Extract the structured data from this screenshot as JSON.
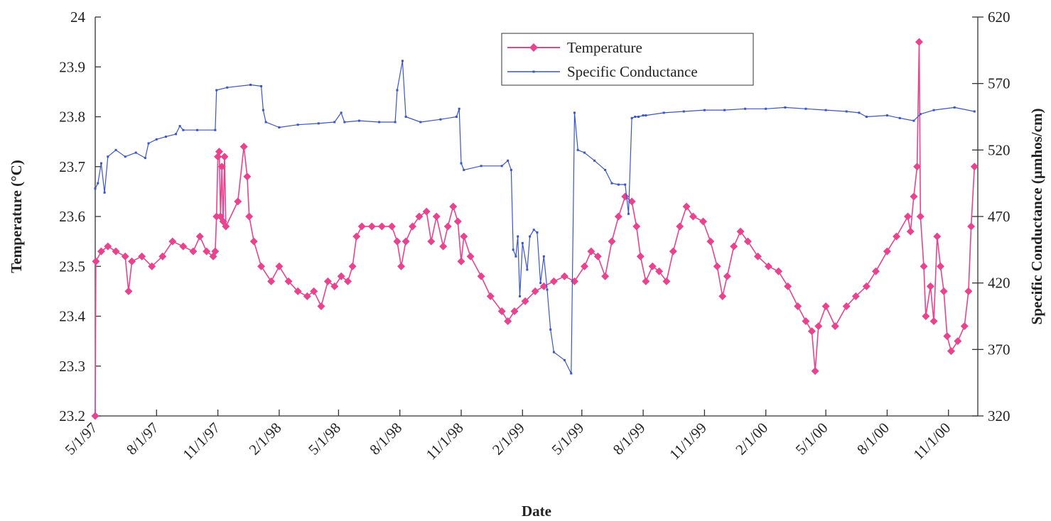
{
  "chart_data": {
    "type": "line",
    "xlabel": "Date",
    "ylabel_left": "Temperature (°C)",
    "ylabel_right": "Specific Conductance (µmhos/cm)",
    "x_tick_labels": [
      "5/1/97",
      "8/1/97",
      "11/1/97",
      "2/1/98",
      "5/1/98",
      "8/1/98",
      "11/1/98",
      "2/1/99",
      "5/1/99",
      "8/1/99",
      "11/1/99",
      "2/1/00",
      "5/1/00",
      "8/1/00",
      "11/1/00"
    ],
    "xlim": [
      "1997-05-01",
      "2000-12-15"
    ],
    "y_left_ticks": [
      "23.2",
      "23.3",
      "23.4",
      "23.5",
      "23.6",
      "23.7",
      "23.8",
      "23.9",
      "24"
    ],
    "ylim_left": [
      23.2,
      24.0
    ],
    "y_right_ticks": [
      "320",
      "370",
      "420",
      "470",
      "520",
      "570",
      "620"
    ],
    "ylim_right": [
      320,
      620
    ],
    "legend_position": "top-center",
    "grid": false,
    "series": [
      {
        "name": "Temperature",
        "axis": "left",
        "color": "#e8438f",
        "marker": "diamond",
        "points": [
          [
            "1997-05-01",
            23.2
          ],
          [
            "1997-05-02",
            23.51
          ],
          [
            "1997-05-10",
            23.53
          ],
          [
            "1997-05-20",
            23.54
          ],
          [
            "1997-06-01",
            23.53
          ],
          [
            "1997-06-15",
            23.52
          ],
          [
            "1997-06-20",
            23.45
          ],
          [
            "1997-06-25",
            23.51
          ],
          [
            "1997-07-10",
            23.52
          ],
          [
            "1997-07-25",
            23.5
          ],
          [
            "1997-08-10",
            23.52
          ],
          [
            "1997-08-25",
            23.55
          ],
          [
            "1997-09-10",
            23.54
          ],
          [
            "1997-09-25",
            23.53
          ],
          [
            "1997-10-05",
            23.56
          ],
          [
            "1997-10-15",
            23.53
          ],
          [
            "1997-10-25",
            23.52
          ],
          [
            "1997-10-28",
            23.53
          ],
          [
            "1997-10-30",
            23.6
          ],
          [
            "1997-11-01",
            23.72
          ],
          [
            "1997-11-03",
            23.73
          ],
          [
            "1997-11-05",
            23.6
          ],
          [
            "1997-11-07",
            23.7
          ],
          [
            "1997-11-09",
            23.59
          ],
          [
            "1997-11-11",
            23.72
          ],
          [
            "1997-11-13",
            23.58
          ],
          [
            "1997-12-01",
            23.63
          ],
          [
            "1997-12-10",
            23.74
          ],
          [
            "1997-12-15",
            23.68
          ],
          [
            "1997-12-18",
            23.6
          ],
          [
            "1997-12-25",
            23.55
          ],
          [
            "1998-01-05",
            23.5
          ],
          [
            "1998-01-20",
            23.47
          ],
          [
            "1998-02-01",
            23.5
          ],
          [
            "1998-02-15",
            23.47
          ],
          [
            "1998-03-01",
            23.45
          ],
          [
            "1998-03-15",
            23.44
          ],
          [
            "1998-03-25",
            23.45
          ],
          [
            "1998-04-05",
            23.42
          ],
          [
            "1998-04-15",
            23.47
          ],
          [
            "1998-04-25",
            23.46
          ],
          [
            "1998-05-05",
            23.48
          ],
          [
            "1998-05-15",
            23.47
          ],
          [
            "1998-05-22",
            23.5
          ],
          [
            "1998-05-28",
            23.56
          ],
          [
            "1998-06-05",
            23.58
          ],
          [
            "1998-06-20",
            23.58
          ],
          [
            "1998-07-05",
            23.58
          ],
          [
            "1998-07-20",
            23.58
          ],
          [
            "1998-07-28",
            23.55
          ],
          [
            "1998-08-03",
            23.5
          ],
          [
            "1998-08-10",
            23.55
          ],
          [
            "1998-08-20",
            23.58
          ],
          [
            "1998-08-30",
            23.6
          ],
          [
            "1998-09-10",
            23.61
          ],
          [
            "1998-09-17",
            23.55
          ],
          [
            "1998-09-25",
            23.6
          ],
          [
            "1998-10-05",
            23.54
          ],
          [
            "1998-10-12",
            23.58
          ],
          [
            "1998-10-20",
            23.62
          ],
          [
            "1998-10-27",
            23.59
          ],
          [
            "1998-11-01",
            23.51
          ],
          [
            "1998-11-05",
            23.56
          ],
          [
            "1998-11-15",
            23.52
          ],
          [
            "1998-12-01",
            23.48
          ],
          [
            "1998-12-15",
            23.44
          ],
          [
            "1999-01-01",
            23.41
          ],
          [
            "1999-01-10",
            23.39
          ],
          [
            "1999-01-20",
            23.41
          ],
          [
            "1999-02-05",
            23.43
          ],
          [
            "1999-02-20",
            23.45
          ],
          [
            "1999-03-05",
            23.46
          ],
          [
            "1999-03-20",
            23.47
          ],
          [
            "1999-04-05",
            23.48
          ],
          [
            "1999-04-20",
            23.47
          ],
          [
            "1999-05-05",
            23.5
          ],
          [
            "1999-05-15",
            23.53
          ],
          [
            "1999-05-25",
            23.52
          ],
          [
            "1999-06-05",
            23.48
          ],
          [
            "1999-06-15",
            23.55
          ],
          [
            "1999-06-25",
            23.6
          ],
          [
            "1999-07-05",
            23.64
          ],
          [
            "1999-07-15",
            23.63
          ],
          [
            "1999-07-22",
            23.58
          ],
          [
            "1999-07-28",
            23.52
          ],
          [
            "1999-08-05",
            23.47
          ],
          [
            "1999-08-15",
            23.5
          ],
          [
            "1999-08-25",
            23.49
          ],
          [
            "1999-09-05",
            23.47
          ],
          [
            "1999-09-15",
            23.53
          ],
          [
            "1999-09-25",
            23.58
          ],
          [
            "1999-10-05",
            23.62
          ],
          [
            "1999-10-15",
            23.6
          ],
          [
            "1999-10-30",
            23.59
          ],
          [
            "1999-11-10",
            23.55
          ],
          [
            "1999-11-20",
            23.5
          ],
          [
            "1999-11-28",
            23.44
          ],
          [
            "1999-12-05",
            23.48
          ],
          [
            "1999-12-15",
            23.54
          ],
          [
            "1999-12-25",
            23.57
          ],
          [
            "2000-01-05",
            23.55
          ],
          [
            "2000-01-20",
            23.52
          ],
          [
            "2000-02-05",
            23.5
          ],
          [
            "2000-02-20",
            23.49
          ],
          [
            "2000-03-05",
            23.46
          ],
          [
            "2000-03-20",
            23.42
          ],
          [
            "2000-04-01",
            23.39
          ],
          [
            "2000-04-10",
            23.37
          ],
          [
            "2000-04-15",
            23.29
          ],
          [
            "2000-04-20",
            23.38
          ],
          [
            "2000-05-01",
            23.42
          ],
          [
            "2000-05-15",
            23.38
          ],
          [
            "2000-06-01",
            23.42
          ],
          [
            "2000-06-15",
            23.44
          ],
          [
            "2000-07-01",
            23.46
          ],
          [
            "2000-07-15",
            23.49
          ],
          [
            "2000-08-01",
            23.53
          ],
          [
            "2000-08-15",
            23.56
          ],
          [
            "2000-09-01",
            23.6
          ],
          [
            "2000-09-05",
            23.57
          ],
          [
            "2000-09-10",
            23.64
          ],
          [
            "2000-09-15",
            23.7
          ],
          [
            "2000-09-18",
            23.95
          ],
          [
            "2000-09-20",
            23.6
          ],
          [
            "2000-09-25",
            23.5
          ],
          [
            "2000-09-28",
            23.4
          ],
          [
            "2000-10-05",
            23.46
          ],
          [
            "2000-10-10",
            23.39
          ],
          [
            "2000-10-15",
            23.56
          ],
          [
            "2000-10-20",
            23.5
          ],
          [
            "2000-10-25",
            23.45
          ],
          [
            "2000-10-30",
            23.36
          ],
          [
            "2000-11-05",
            23.33
          ],
          [
            "2000-11-15",
            23.35
          ],
          [
            "2000-11-25",
            23.38
          ],
          [
            "2000-12-01",
            23.45
          ],
          [
            "2000-12-05",
            23.58
          ],
          [
            "2000-12-10",
            23.7
          ]
        ]
      },
      {
        "name": "Specific Conductance",
        "axis": "right",
        "color": "#3a55c8",
        "marker": "point",
        "points": [
          [
            "1997-05-01",
            491
          ],
          [
            "1997-05-05",
            495
          ],
          [
            "1997-05-10",
            510
          ],
          [
            "1997-05-15",
            488
          ],
          [
            "1997-05-20",
            515
          ],
          [
            "1997-06-01",
            520
          ],
          [
            "1997-06-15",
            515
          ],
          [
            "1997-07-01",
            518
          ],
          [
            "1997-07-15",
            514
          ],
          [
            "1997-07-20",
            525
          ],
          [
            "1997-08-01",
            528
          ],
          [
            "1997-08-15",
            530
          ],
          [
            "1997-08-30",
            532
          ],
          [
            "1997-09-05",
            538
          ],
          [
            "1997-09-10",
            535
          ],
          [
            "1997-10-01",
            535
          ],
          [
            "1997-10-28",
            535
          ],
          [
            "1997-10-30",
            565
          ],
          [
            "1997-11-15",
            567
          ],
          [
            "1997-12-20",
            569
          ],
          [
            "1998-01-05",
            568
          ],
          [
            "1998-01-08",
            550
          ],
          [
            "1998-01-12",
            541
          ],
          [
            "1998-02-01",
            537
          ],
          [
            "1998-03-01",
            539
          ],
          [
            "1998-04-01",
            540
          ],
          [
            "1998-04-25",
            541
          ],
          [
            "1998-05-05",
            548
          ],
          [
            "1998-05-10",
            541
          ],
          [
            "1998-06-01",
            542
          ],
          [
            "1998-07-01",
            541
          ],
          [
            "1998-07-25",
            541
          ],
          [
            "1998-07-28",
            565
          ],
          [
            "1998-08-05",
            587
          ],
          [
            "1998-08-10",
            545
          ],
          [
            "1998-09-01",
            541
          ],
          [
            "1998-10-01",
            543
          ],
          [
            "1998-10-25",
            545
          ],
          [
            "1998-10-29",
            551
          ],
          [
            "1998-11-01",
            510
          ],
          [
            "1998-11-05",
            505
          ],
          [
            "1998-12-01",
            508
          ],
          [
            "1999-01-01",
            508
          ],
          [
            "1999-01-10",
            512
          ],
          [
            "1999-01-15",
            505
          ],
          [
            "1999-01-18",
            445
          ],
          [
            "1999-01-22",
            440
          ],
          [
            "1999-01-25",
            455
          ],
          [
            "1999-01-28",
            410
          ],
          [
            "1999-02-01",
            450
          ],
          [
            "1999-02-08",
            430
          ],
          [
            "1999-02-12",
            455
          ],
          [
            "1999-02-18",
            460
          ],
          [
            "1999-02-23",
            458
          ],
          [
            "1999-02-28",
            420
          ],
          [
            "1999-03-05",
            440
          ],
          [
            "1999-03-10",
            415
          ],
          [
            "1999-03-15",
            385
          ],
          [
            "1999-03-20",
            368
          ],
          [
            "1999-04-05",
            362
          ],
          [
            "1999-04-15",
            352
          ],
          [
            "1999-04-20",
            548
          ],
          [
            "1999-04-25",
            520
          ],
          [
            "1999-05-05",
            518
          ],
          [
            "1999-05-20",
            512
          ],
          [
            "1999-06-05",
            505
          ],
          [
            "1999-06-15",
            495
          ],
          [
            "1999-06-25",
            494
          ],
          [
            "1999-07-05",
            494
          ],
          [
            "1999-07-10",
            472
          ],
          [
            "1999-07-15",
            544
          ],
          [
            "1999-07-20",
            545
          ],
          [
            "1999-07-25",
            545
          ],
          [
            "1999-08-01",
            546
          ],
          [
            "1999-08-05",
            546
          ],
          [
            "1999-09-01",
            548
          ],
          [
            "1999-10-01",
            549
          ],
          [
            "1999-11-01",
            550
          ],
          [
            "1999-12-01",
            550
          ],
          [
            "2000-01-01",
            551
          ],
          [
            "2000-02-01",
            551
          ],
          [
            "2000-03-01",
            552
          ],
          [
            "2000-04-01",
            551
          ],
          [
            "2000-05-01",
            550
          ],
          [
            "2000-06-01",
            549
          ],
          [
            "2000-06-20",
            548
          ],
          [
            "2000-07-01",
            545
          ],
          [
            "2000-08-01",
            546
          ],
          [
            "2000-08-20",
            544
          ],
          [
            "2000-09-10",
            542
          ],
          [
            "2000-09-20",
            547
          ],
          [
            "2000-10-10",
            550
          ],
          [
            "2000-11-10",
            552
          ],
          [
            "2000-12-10",
            549
          ]
        ]
      }
    ]
  }
}
